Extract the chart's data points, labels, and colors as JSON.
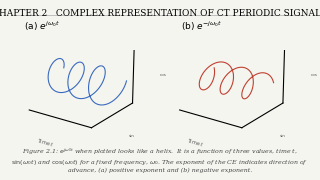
{
  "title": "CHAPTER 2   COMPLEX REPRESENTATION OF CT PERIODIC SIGNALS",
  "title_fontsize": 6.5,
  "label_a": "(a) $e^{j\\omega_0 t}$",
  "label_b": "(b) $e^{-j\\omega_0 t}$",
  "caption": "Figure 2.1: $e^{j\\omega_0 t}$ when plotted looks like a helix.  It is a function of three values, time $t$,\n$\\sin(\\omega_0 t)$ and $\\cos(\\omega_0 t)$ for a fixed frequency, $\\omega_0$. The exponent of the CE indicates direction of\nadvance, (a) positive exponent and (b) negative exponent.",
  "caption_fontsize": 4.5,
  "bg_color": "#f5f5f0",
  "helix_color_a": "#3a6abf",
  "helix_color_b": "#c04030",
  "axis_label_color": "#555555",
  "n_turns": 3,
  "n_points": 300
}
